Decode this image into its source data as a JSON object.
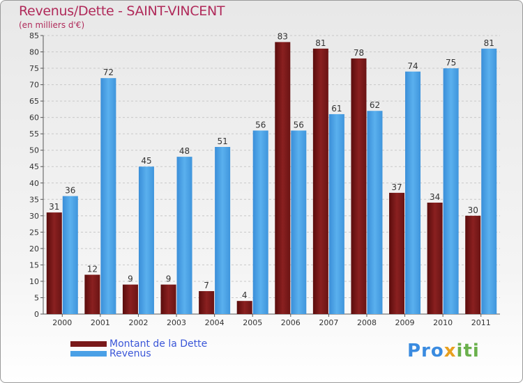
{
  "chart_data": {
    "type": "bar",
    "title": "Revenus/Dette - SAINT-VINCENT",
    "subtitle": "(en milliers d'€)",
    "categories": [
      "2000",
      "2001",
      "2002",
      "2003",
      "2004",
      "2005",
      "2006",
      "2007",
      "2008",
      "2009",
      "2010",
      "2011"
    ],
    "series": [
      {
        "name": "Montant de la Dette",
        "color": "#7a1a1a",
        "values": [
          31,
          12,
          9,
          9,
          7,
          4,
          83,
          81,
          78,
          37,
          34,
          30
        ]
      },
      {
        "name": "Revenus",
        "color": "#4aa0e6",
        "values": [
          36,
          72,
          45,
          48,
          51,
          56,
          56,
          61,
          62,
          74,
          75,
          81
        ]
      }
    ],
    "ylim": [
      0,
      85
    ],
    "yticks": [
      0,
      5,
      10,
      15,
      20,
      25,
      30,
      35,
      40,
      45,
      50,
      55,
      60,
      65,
      70,
      75,
      80,
      85
    ],
    "grid": true,
    "legend_position": "bottom-left"
  },
  "logo": {
    "text": "Proxiti"
  }
}
